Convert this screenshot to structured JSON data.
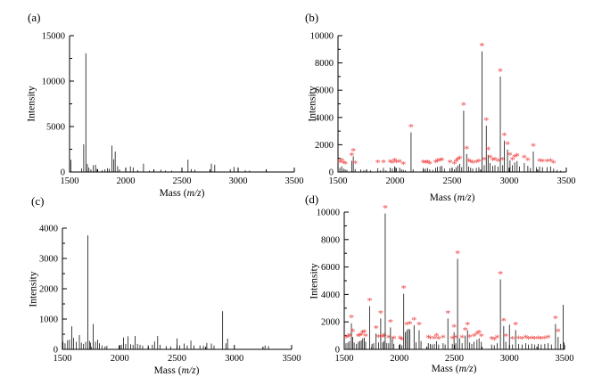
{
  "figure": {
    "background": "#ffffff"
  },
  "colors": {
    "axis": "#000000",
    "peak": "#111111",
    "asterisk": "#f14848",
    "text": "#000000"
  },
  "marker": {
    "glyph": "*",
    "meaning": "starred-peak"
  },
  "axis": {
    "xlabel_prefix": "Mass (",
    "xlabel_italic": "m/z",
    "xlabel_suffix": ")",
    "ylabel": "Intensity"
  },
  "chart_data": [
    {
      "type": "line",
      "panel_label": "(a)",
      "xlabel": "Mass (m/z)",
      "ylabel": "Intensity",
      "xlim": [
        1500,
        3500
      ],
      "ylim": [
        0,
        15000
      ],
      "xticks": [
        1500,
        2000,
        2500,
        3000,
        3500
      ],
      "yticks": [
        0,
        5000,
        10000,
        15000
      ],
      "grid": false,
      "legend": false,
      "peaks": [
        [
          1512,
          1350,
          0
        ],
        [
          1608,
          400,
          0
        ],
        [
          1626,
          3050,
          0
        ],
        [
          1645,
          13050,
          0
        ],
        [
          1658,
          900,
          0
        ],
        [
          1672,
          500,
          0
        ],
        [
          1690,
          300,
          0
        ],
        [
          1712,
          750,
          0
        ],
        [
          1731,
          800,
          0
        ],
        [
          1745,
          350,
          0
        ],
        [
          1790,
          200,
          0
        ],
        [
          1815,
          300,
          0
        ],
        [
          1838,
          420,
          0
        ],
        [
          1853,
          350,
          0
        ],
        [
          1876,
          2900,
          0
        ],
        [
          1892,
          1400,
          0
        ],
        [
          1906,
          2250,
          0
        ],
        [
          1928,
          650,
          0
        ],
        [
          1945,
          300,
          0
        ],
        [
          2041,
          620,
          0
        ],
        [
          2066,
          500,
          0
        ],
        [
          2106,
          200,
          0
        ],
        [
          2158,
          920,
          0
        ],
        [
          2210,
          150,
          0
        ],
        [
          2312,
          260,
          0
        ],
        [
          2352,
          160,
          0
        ],
        [
          2410,
          150,
          0
        ],
        [
          2554,
          1350,
          0
        ],
        [
          2582,
          320,
          0
        ],
        [
          2616,
          250,
          0
        ],
        [
          2762,
          920,
          0
        ],
        [
          2792,
          800,
          0
        ],
        [
          2930,
          310,
          0
        ],
        [
          2963,
          560,
          0
        ],
        [
          3064,
          200,
          0
        ],
        [
          3102,
          150,
          0
        ]
      ]
    },
    {
      "type": "line",
      "panel_label": "(b)",
      "xlabel": "Mass (m/z)",
      "ylabel": "Intensity",
      "xlim": [
        1500,
        3500
      ],
      "ylim": [
        0,
        10000
      ],
      "xticks": [
        1500,
        2000,
        2500,
        3000,
        3500
      ],
      "yticks": [
        0,
        2000,
        4000,
        6000,
        8000,
        10000
      ],
      "grid": false,
      "legend": false,
      "peaks": [
        [
          1516,
          300,
          1
        ],
        [
          1532,
          420,
          1
        ],
        [
          1548,
          250,
          1
        ],
        [
          1563,
          200,
          1
        ],
        [
          1578,
          150,
          0
        ],
        [
          1620,
          820,
          1
        ],
        [
          1634,
          1150,
          1
        ],
        [
          1650,
          220,
          1
        ],
        [
          1700,
          180,
          0
        ],
        [
          1726,
          120,
          0
        ],
        [
          1748,
          100,
          0
        ],
        [
          1786,
          120,
          0
        ],
        [
          1849,
          280,
          1
        ],
        [
          1873,
          120,
          0
        ],
        [
          1898,
          300,
          1
        ],
        [
          1920,
          120,
          0
        ],
        [
          1957,
          320,
          1
        ],
        [
          1976,
          250,
          1
        ],
        [
          1996,
          420,
          1
        ],
        [
          2012,
          300,
          1
        ],
        [
          2040,
          320,
          1
        ],
        [
          2056,
          200,
          0
        ],
        [
          2072,
          160,
          1
        ],
        [
          2090,
          120,
          0
        ],
        [
          2140,
          2900,
          1
        ],
        [
          2158,
          200,
          0
        ],
        [
          2247,
          300,
          1
        ],
        [
          2267,
          250,
          1
        ],
        [
          2286,
          300,
          1
        ],
        [
          2304,
          200,
          1
        ],
        [
          2330,
          150,
          0
        ],
        [
          2356,
          300,
          1
        ],
        [
          2372,
          380,
          1
        ],
        [
          2394,
          420,
          1
        ],
        [
          2410,
          450,
          1
        ],
        [
          2432,
          250,
          0
        ],
        [
          2481,
          280,
          1
        ],
        [
          2520,
          200,
          1
        ],
        [
          2534,
          350,
          1
        ],
        [
          2550,
          480,
          1
        ],
        [
          2566,
          600,
          1
        ],
        [
          2584,
          350,
          0
        ],
        [
          2601,
          4500,
          1
        ],
        [
          2627,
          1320,
          1
        ],
        [
          2644,
          400,
          1
        ],
        [
          2662,
          320,
          1
        ],
        [
          2680,
          250,
          1
        ],
        [
          2712,
          300,
          1
        ],
        [
          2734,
          350,
          1
        ],
        [
          2761,
          8850,
          1
        ],
        [
          2781,
          500,
          1
        ],
        [
          2799,
          3400,
          1
        ],
        [
          2815,
          1250,
          1
        ],
        [
          2832,
          650,
          1
        ],
        [
          2856,
          450,
          1
        ],
        [
          2875,
          500,
          1
        ],
        [
          2901,
          400,
          1
        ],
        [
          2922,
          7000,
          1
        ],
        [
          2943,
          500,
          1
        ],
        [
          2958,
          2300,
          1
        ],
        [
          2985,
          1650,
          1
        ],
        [
          3007,
          850,
          1
        ],
        [
          3028,
          500,
          1
        ],
        [
          3048,
          700,
          1
        ],
        [
          3069,
          800,
          1
        ],
        [
          3090,
          400,
          0
        ],
        [
          3132,
          650,
          1
        ],
        [
          3163,
          450,
          1
        ],
        [
          3186,
          300,
          0
        ],
        [
          3211,
          1500,
          1
        ],
        [
          3238,
          350,
          0
        ],
        [
          3266,
          400,
          1
        ],
        [
          3291,
          350,
          1
        ],
        [
          3331,
          350,
          1
        ],
        [
          3362,
          400,
          1
        ],
        [
          3389,
          250,
          1
        ],
        [
          3420,
          150,
          0
        ],
        [
          3451,
          100,
          0
        ]
      ]
    },
    {
      "type": "line",
      "panel_label": "(c)",
      "xlabel": "Mass (m/z)",
      "ylabel": "Intensity",
      "xlim": [
        1500,
        3500
      ],
      "ylim": [
        0,
        4000
      ],
      "xticks": [
        1500,
        2000,
        2500,
        3000,
        3500
      ],
      "yticks": [
        0,
        1000,
        2000,
        3000,
        4000
      ],
      "grid": false,
      "legend": false,
      "peaks": [
        [
          1505,
          250,
          0
        ],
        [
          1523,
          200,
          0
        ],
        [
          1545,
          300,
          0
        ],
        [
          1562,
          320,
          0
        ],
        [
          1581,
          760,
          0
        ],
        [
          1598,
          380,
          0
        ],
        [
          1621,
          250,
          0
        ],
        [
          1648,
          470,
          0
        ],
        [
          1665,
          220,
          0
        ],
        [
          1684,
          180,
          0
        ],
        [
          1703,
          250,
          0
        ],
        [
          1721,
          3760,
          0
        ],
        [
          1736,
          280,
          0
        ],
        [
          1746,
          220,
          0
        ],
        [
          1769,
          840,
          0
        ],
        [
          1788,
          250,
          0
        ],
        [
          1808,
          320,
          0
        ],
        [
          1822,
          200,
          0
        ],
        [
          1845,
          130,
          0
        ],
        [
          1872,
          100,
          0
        ],
        [
          1888,
          120,
          0
        ],
        [
          1993,
          120,
          0
        ],
        [
          2015,
          150,
          0
        ],
        [
          2033,
          390,
          0
        ],
        [
          2052,
          180,
          0
        ],
        [
          2073,
          430,
          0
        ],
        [
          2095,
          170,
          0
        ],
        [
          2116,
          150,
          0
        ],
        [
          2134,
          440,
          0
        ],
        [
          2155,
          180,
          0
        ],
        [
          2177,
          150,
          0
        ],
        [
          2200,
          120,
          0
        ],
        [
          2248,
          140,
          0
        ],
        [
          2285,
          150,
          0
        ],
        [
          2304,
          260,
          0
        ],
        [
          2331,
          440,
          0
        ],
        [
          2352,
          150,
          0
        ],
        [
          2405,
          110,
          0
        ],
        [
          2444,
          100,
          0
        ],
        [
          2501,
          360,
          0
        ],
        [
          2523,
          130,
          0
        ],
        [
          2562,
          190,
          0
        ],
        [
          2589,
          130,
          0
        ],
        [
          2621,
          290,
          0
        ],
        [
          2648,
          130,
          0
        ],
        [
          2700,
          130,
          0
        ],
        [
          2730,
          120,
          0
        ],
        [
          2760,
          210,
          0
        ],
        [
          2800,
          190,
          0
        ],
        [
          2823,
          130,
          0
        ],
        [
          2898,
          1260,
          0
        ],
        [
          2926,
          200,
          0
        ],
        [
          2941,
          360,
          0
        ],
        [
          3268,
          130,
          0
        ],
        [
          3298,
          110,
          0
        ]
      ]
    },
    {
      "type": "line",
      "panel_label": "(d)",
      "xlabel": "Mass (m/z)",
      "ylabel": "Intensity",
      "xlim": [
        1500,
        3500
      ],
      "ylim": [
        0,
        10000
      ],
      "xticks": [
        1500,
        2000,
        2500,
        3000,
        3500
      ],
      "yticks": [
        0,
        2000,
        4000,
        6000,
        8000,
        10000
      ],
      "grid": false,
      "legend": false,
      "peaks": [
        [
          1516,
          450,
          1
        ],
        [
          1533,
          500,
          1
        ],
        [
          1548,
          600,
          1
        ],
        [
          1565,
          1900,
          1
        ],
        [
          1577,
          900,
          1
        ],
        [
          1590,
          500,
          0
        ],
        [
          1611,
          400,
          0
        ],
        [
          1628,
          550,
          1
        ],
        [
          1641,
          600,
          1
        ],
        [
          1655,
          650,
          1
        ],
        [
          1668,
          800,
          1
        ],
        [
          1681,
          850,
          1
        ],
        [
          1694,
          550,
          1
        ],
        [
          1731,
          3150,
          1
        ],
        [
          1752,
          400,
          0
        ],
        [
          1767,
          450,
          0
        ],
        [
          1789,
          1150,
          1
        ],
        [
          1812,
          500,
          1
        ],
        [
          1831,
          2250,
          1
        ],
        [
          1848,
          500,
          1
        ],
        [
          1861,
          600,
          1
        ],
        [
          1872,
          9900,
          1
        ],
        [
          1887,
          450,
          0
        ],
        [
          1904,
          450,
          1
        ],
        [
          1920,
          1600,
          1
        ],
        [
          1937,
          900,
          0
        ],
        [
          1951,
          400,
          1
        ],
        [
          2007,
          400,
          1
        ],
        [
          2023,
          300,
          1
        ],
        [
          2040,
          4050,
          1
        ],
        [
          2054,
          1250,
          0
        ],
        [
          2068,
          1400,
          1
        ],
        [
          2082,
          1500,
          0
        ],
        [
          2096,
          1450,
          1
        ],
        [
          2134,
          1750,
          1
        ],
        [
          2152,
          500,
          0
        ],
        [
          2180,
          1400,
          1
        ],
        [
          2197,
          600,
          0
        ],
        [
          2263,
          450,
          1
        ],
        [
          2281,
          400,
          1
        ],
        [
          2299,
          350,
          0
        ],
        [
          2318,
          400,
          1
        ],
        [
          2338,
          600,
          1
        ],
        [
          2357,
          350,
          1
        ],
        [
          2398,
          450,
          1
        ],
        [
          2416,
          350,
          0
        ],
        [
          2441,
          2250,
          1
        ],
        [
          2481,
          400,
          1
        ],
        [
          2497,
          1250,
          1
        ],
        [
          2512,
          450,
          1
        ],
        [
          2529,
          6600,
          1
        ],
        [
          2547,
          800,
          0
        ],
        [
          2570,
          450,
          1
        ],
        [
          2599,
          1000,
          1
        ],
        [
          2619,
          1400,
          1
        ],
        [
          2639,
          500,
          1
        ],
        [
          2658,
          400,
          0
        ],
        [
          2679,
          550,
          1
        ],
        [
          2705,
          700,
          1
        ],
        [
          2724,
          800,
          1
        ],
        [
          2745,
          550,
          1
        ],
        [
          2838,
          350,
          1
        ],
        [
          2862,
          300,
          1
        ],
        [
          2888,
          450,
          1
        ],
        [
          2918,
          5100,
          1
        ],
        [
          2948,
          1700,
          1
        ],
        [
          2967,
          550,
          1
        ],
        [
          3000,
          1800,
          0
        ],
        [
          3028,
          350,
          1
        ],
        [
          3056,
          1400,
          1
        ],
        [
          3084,
          400,
          1
        ],
        [
          3116,
          350,
          1
        ],
        [
          3149,
          450,
          1
        ],
        [
          3172,
          350,
          1
        ],
        [
          3202,
          400,
          1
        ],
        [
          3230,
          350,
          1
        ],
        [
          3262,
          400,
          1
        ],
        [
          3288,
          350,
          1
        ],
        [
          3321,
          400,
          1
        ],
        [
          3352,
          450,
          1
        ],
        [
          3381,
          350,
          0
        ],
        [
          3418,
          1850,
          1
        ],
        [
          3442,
          900,
          1
        ],
        [
          3465,
          400,
          0
        ],
        [
          3488,
          3250,
          0
        ],
        [
          3497,
          500,
          0
        ]
      ]
    }
  ]
}
